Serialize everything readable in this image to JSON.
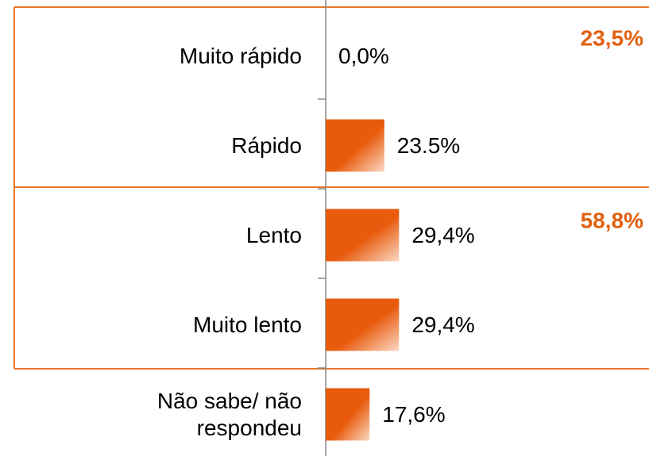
{
  "chart_data": {
    "type": "bar",
    "orientation": "horizontal",
    "categories": [
      "Muito rápido",
      "Rápido",
      "Lento",
      "Muito lento",
      "Não sabe/ não respondeu"
    ],
    "values": [
      0,
      23.5,
      29.4,
      29.4,
      17.6
    ],
    "value_labels": [
      "0,0%",
      "23.5%",
      "29,4%",
      "29,4%",
      "17,6%"
    ],
    "color": "#e85a0c",
    "xlim": [
      0,
      100
    ],
    "annotations": [
      "23,5%",
      "58,8%"
    ]
  }
}
